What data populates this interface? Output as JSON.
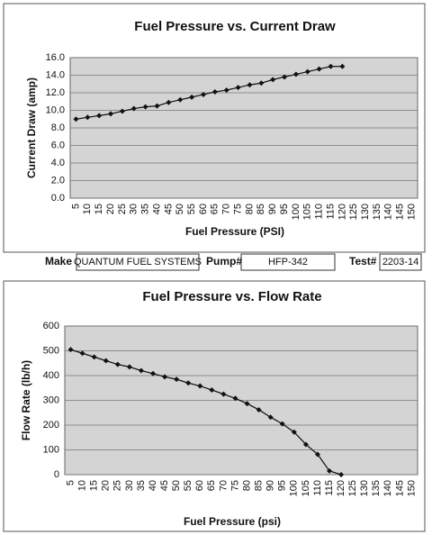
{
  "chart_data": [
    {
      "type": "line",
      "title": "Fuel Pressure vs. Current Draw",
      "x_label": "Fuel Pressure (PSI)",
      "y_label": "Current Draw (amp)",
      "categories": [
        "5",
        "10",
        "15",
        "20",
        "25",
        "30",
        "35",
        "40",
        "45",
        "50",
        "55",
        "60",
        "65",
        "70",
        "75",
        "80",
        "85",
        "90",
        "95",
        "100",
        "105",
        "110",
        "115",
        "120",
        "125",
        "130",
        "135",
        "140",
        "145",
        "150"
      ],
      "values": [
        9.0,
        9.2,
        9.4,
        9.6,
        9.9,
        10.2,
        10.4,
        10.5,
        10.9,
        11.2,
        11.5,
        11.8,
        12.1,
        12.3,
        12.6,
        12.9,
        13.1,
        13.5,
        13.8,
        14.1,
        14.4,
        14.7,
        15.0,
        15.0,
        null,
        null,
        null,
        null,
        null,
        null
      ],
      "color": "#111111",
      "background": "#d4d4d4",
      "grid": true,
      "ylim": [
        0,
        16
      ],
      "yticks": [
        {
          "value": 0,
          "label": "0.0"
        },
        {
          "value": 2,
          "label": "2.0"
        },
        {
          "value": 4,
          "label": "4.0"
        },
        {
          "value": 6,
          "label": "6.0"
        },
        {
          "value": 8,
          "label": "8.0"
        },
        {
          "value": 10,
          "label": "10.0"
        },
        {
          "value": 12,
          "label": "12.0"
        },
        {
          "value": 14,
          "label": "14.0"
        },
        {
          "value": 16,
          "label": "16.0"
        }
      ]
    },
    {
      "type": "line",
      "title": "Fuel Pressure vs. Flow Rate",
      "x_label": "Fuel Pressure (psi)",
      "y_label": "Flow Rate (lb/h)",
      "categories": [
        "5",
        "10",
        "15",
        "20",
        "25",
        "30",
        "35",
        "40",
        "45",
        "50",
        "55",
        "60",
        "65",
        "70",
        "75",
        "80",
        "85",
        "90",
        "95",
        "100",
        "105",
        "110",
        "115",
        "120",
        "125",
        "130",
        "135",
        "140",
        "145",
        "150"
      ],
      "values": [
        505,
        490,
        475,
        460,
        445,
        435,
        420,
        408,
        395,
        385,
        370,
        358,
        342,
        325,
        308,
        287,
        262,
        232,
        205,
        172,
        122,
        82,
        15,
        0,
        null,
        null,
        null,
        null,
        null,
        null
      ],
      "color": "#111111",
      "background": "#d4d4d4",
      "grid": true,
      "ylim": [
        0,
        600
      ],
      "yticks": [
        0,
        100,
        200,
        300,
        400,
        500,
        600
      ]
    }
  ],
  "form": {
    "make_label": "Make",
    "make": "QUANTUM FUEL SYSTEMS",
    "pump_label": "Pump#",
    "pump": "HFP-342",
    "test_label": "Test#",
    "test": "2203-14"
  }
}
